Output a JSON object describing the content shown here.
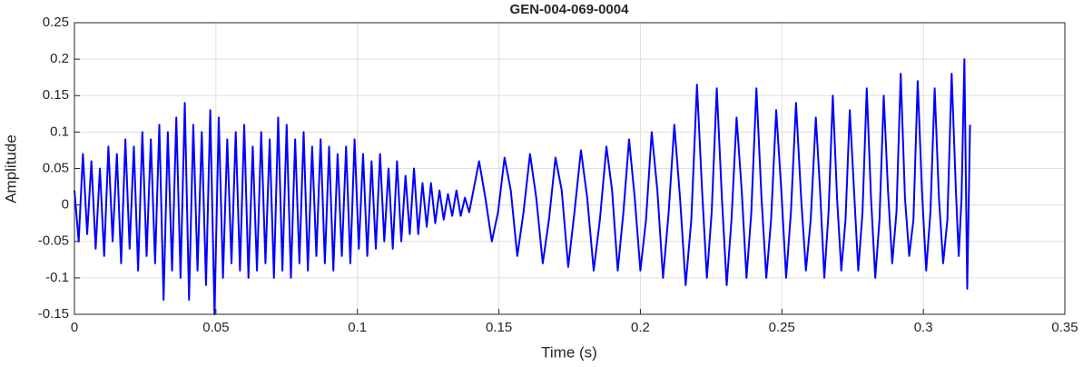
{
  "chart_data": {
    "type": "line",
    "title": "GEN-004-069-0004",
    "x_label": "Time (s)",
    "y_label": "Amplitude",
    "color": "#0000ff",
    "grid": true,
    "xlim": [
      0,
      0.35
    ],
    "xticks": [
      0,
      0.05,
      0.1,
      0.15,
      0.2,
      0.25,
      0.3,
      0.35
    ],
    "ylim": [
      -0.15,
      0.25
    ],
    "yticks": [
      -0.15,
      -0.1,
      -0.05,
      0,
      0.05,
      0.1,
      0.15,
      0.2,
      0.25
    ],
    "x": [
      0,
      0.0015,
      0.003,
      0.0045,
      0.006,
      0.0075,
      0.009,
      0.0105,
      0.012,
      0.0135,
      0.015,
      0.0165,
      0.018,
      0.0195,
      0.021,
      0.0225,
      0.024,
      0.0255,
      0.027,
      0.0285,
      0.03,
      0.0315,
      0.033,
      0.0345,
      0.036,
      0.0375,
      0.039,
      0.0405,
      0.042,
      0.0435,
      0.045,
      0.0465,
      0.048,
      0.0495,
      0.051,
      0.0525,
      0.054,
      0.0555,
      0.057,
      0.0585,
      0.06,
      0.0615,
      0.063,
      0.0645,
      0.066,
      0.0675,
      0.069,
      0.0705,
      0.072,
      0.0735,
      0.075,
      0.0765,
      0.078,
      0.0795,
      0.081,
      0.0825,
      0.084,
      0.0855,
      0.087,
      0.0885,
      0.09,
      0.0915,
      0.093,
      0.0945,
      0.096,
      0.0975,
      0.099,
      0.1005,
      0.102,
      0.1035,
      0.105,
      0.1065,
      0.108,
      0.1095,
      0.111,
      0.1125,
      0.114,
      0.1155,
      0.117,
      0.1185,
      0.12,
      0.1215,
      0.123,
      0.1245,
      0.126,
      0.1275,
      0.129,
      0.1305,
      0.132,
      0.1335,
      0.135,
      0.1365,
      0.138,
      0.1395,
      0.143,
      0.1452,
      0.1475,
      0.1497,
      0.152,
      0.1542,
      0.1565,
      0.1587,
      0.161,
      0.1632,
      0.1655,
      0.1677,
      0.17,
      0.1722,
      0.1745,
      0.1767,
      0.179,
      0.1812,
      0.1835,
      0.1857,
      0.188,
      0.19,
      0.192,
      0.194,
      0.196,
      0.198,
      0.2,
      0.202,
      0.204,
      0.206,
      0.208,
      0.21,
      0.212,
      0.214,
      0.216,
      0.218,
      0.22,
      0.2218,
      0.2235,
      0.2252,
      0.227,
      0.2288,
      0.2305,
      0.2322,
      0.234,
      0.2358,
      0.2375,
      0.2392,
      0.241,
      0.2428,
      0.2445,
      0.2462,
      0.248,
      0.2498,
      0.2515,
      0.2532,
      0.255,
      0.2568,
      0.2585,
      0.2602,
      0.262,
      0.2635,
      0.265,
      0.2665,
      0.268,
      0.2695,
      0.271,
      0.2725,
      0.274,
      0.2755,
      0.277,
      0.2785,
      0.28,
      0.2815,
      0.283,
      0.2845,
      0.286,
      0.2875,
      0.289,
      0.2905,
      0.292,
      0.2935,
      0.295,
      0.2965,
      0.298,
      0.2995,
      0.301,
      0.3025,
      0.304,
      0.3055,
      0.307,
      0.3085,
      0.31,
      0.3115,
      0.3125,
      0.3135,
      0.3145,
      0.3155,
      0.3165
    ],
    "values": [
      0.02,
      -0.05,
      0.07,
      -0.04,
      0.06,
      -0.06,
      0.05,
      -0.07,
      0.08,
      -0.05,
      0.07,
      -0.08,
      0.09,
      -0.06,
      0.08,
      -0.09,
      0.1,
      -0.07,
      0.09,
      -0.08,
      0.11,
      -0.13,
      0.1,
      -0.09,
      0.12,
      -0.1,
      0.14,
      -0.13,
      0.11,
      -0.09,
      0.1,
      -0.11,
      0.13,
      -0.15,
      0.12,
      -0.1,
      0.09,
      -0.08,
      0.1,
      -0.09,
      0.11,
      -0.1,
      0.08,
      -0.09,
      0.1,
      -0.08,
      0.09,
      -0.1,
      0.12,
      -0.09,
      0.11,
      -0.1,
      0.09,
      -0.08,
      0.1,
      -0.09,
      0.08,
      -0.07,
      0.09,
      -0.08,
      0.08,
      -0.09,
      0.07,
      -0.07,
      0.08,
      -0.08,
      0.09,
      -0.06,
      0.07,
      -0.07,
      0.06,
      -0.06,
      0.07,
      -0.05,
      0.05,
      -0.06,
      0.06,
      -0.05,
      0.04,
      -0.04,
      0.05,
      -0.04,
      0.03,
      -0.03,
      0.03,
      -0.025,
      0.02,
      -0.02,
      0.015,
      -0.015,
      0.02,
      -0.015,
      0.01,
      -0.01,
      0.06,
      0.01,
      -0.05,
      -0.01,
      0.065,
      0.02,
      -0.07,
      -0.01,
      0.07,
      0.01,
      -0.08,
      -0.02,
      0.065,
      0.02,
      -0.085,
      -0.01,
      0.075,
      0.01,
      -0.09,
      -0.02,
      0.08,
      0.02,
      -0.09,
      -0.01,
      0.09,
      0.01,
      -0.09,
      -0.02,
      0.1,
      0.02,
      -0.1,
      -0.01,
      0.11,
      0.01,
      -0.11,
      -0.02,
      0.165,
      0.02,
      -0.1,
      -0.01,
      0.16,
      0.01,
      -0.11,
      -0.02,
      0.12,
      0.02,
      -0.1,
      -0.01,
      0.16,
      0.01,
      -0.1,
      -0.02,
      0.13,
      0.02,
      -0.1,
      -0.01,
      0.14,
      0.01,
      -0.09,
      -0.02,
      0.12,
      0.02,
      -0.1,
      -0.01,
      0.15,
      0.01,
      -0.09,
      -0.02,
      0.13,
      0.02,
      -0.09,
      -0.01,
      0.16,
      0.01,
      -0.1,
      -0.02,
      0.15,
      0.02,
      -0.08,
      -0.01,
      0.18,
      0.01,
      -0.07,
      -0.02,
      0.17,
      0.02,
      -0.09,
      -0.01,
      0.16,
      0.01,
      -0.08,
      -0.02,
      0.18,
      0.02,
      -0.07,
      0.01,
      0.2,
      -0.115,
      0.11
    ]
  }
}
